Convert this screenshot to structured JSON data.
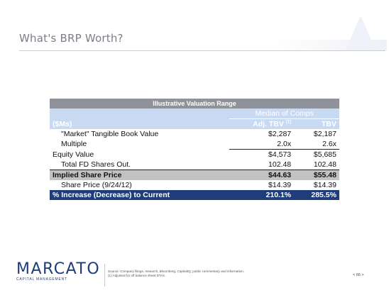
{
  "slide": {
    "title": "What's BRP Worth?"
  },
  "table": {
    "header": "Illustrative Valuation Range",
    "group_label": "Median of Comps",
    "units_label": "($Ms)",
    "col1": "Adj. TBV",
    "col1_note": "(1)",
    "col2": "TBV",
    "rows": [
      {
        "label": "\"Market\" Tangible Book Value",
        "v1": "$2,287",
        "v2": "$2,187"
      },
      {
        "label": "Multiple",
        "v1": "2.0x",
        "v2": "2.6x"
      },
      {
        "label": "Equity Value",
        "v1": "$4,573",
        "v2": "$5,685"
      },
      {
        "label": "Total FD Shares Out.",
        "v1": "102.48",
        "v2": "102.48"
      },
      {
        "label": "Implied Share Price",
        "v1": "$44.63",
        "v2": "$55.48"
      },
      {
        "label": "Share Price (9/24/12)",
        "v1": "$14.39",
        "v2": "$14.39"
      },
      {
        "label": "% Increase (Decrease) to Current",
        "v1": "210.1%",
        "v2": "285.5%"
      }
    ]
  },
  "footer": {
    "logo": "MARCATO",
    "logo_sub": "CAPITAL MANAGEMENT",
    "source": "Source: Company filings, research, Bloomberg, CapitalIQ, public commentary and information.",
    "note": "(1)      Adjusted for off balance sheet DTAs.",
    "page": "< 66 >"
  },
  "colors": {
    "navy": "#1f3d7a",
    "light_blue": "#c7daf2",
    "gray_header": "#8e939b",
    "implied_gray": "#c2c2c2"
  }
}
